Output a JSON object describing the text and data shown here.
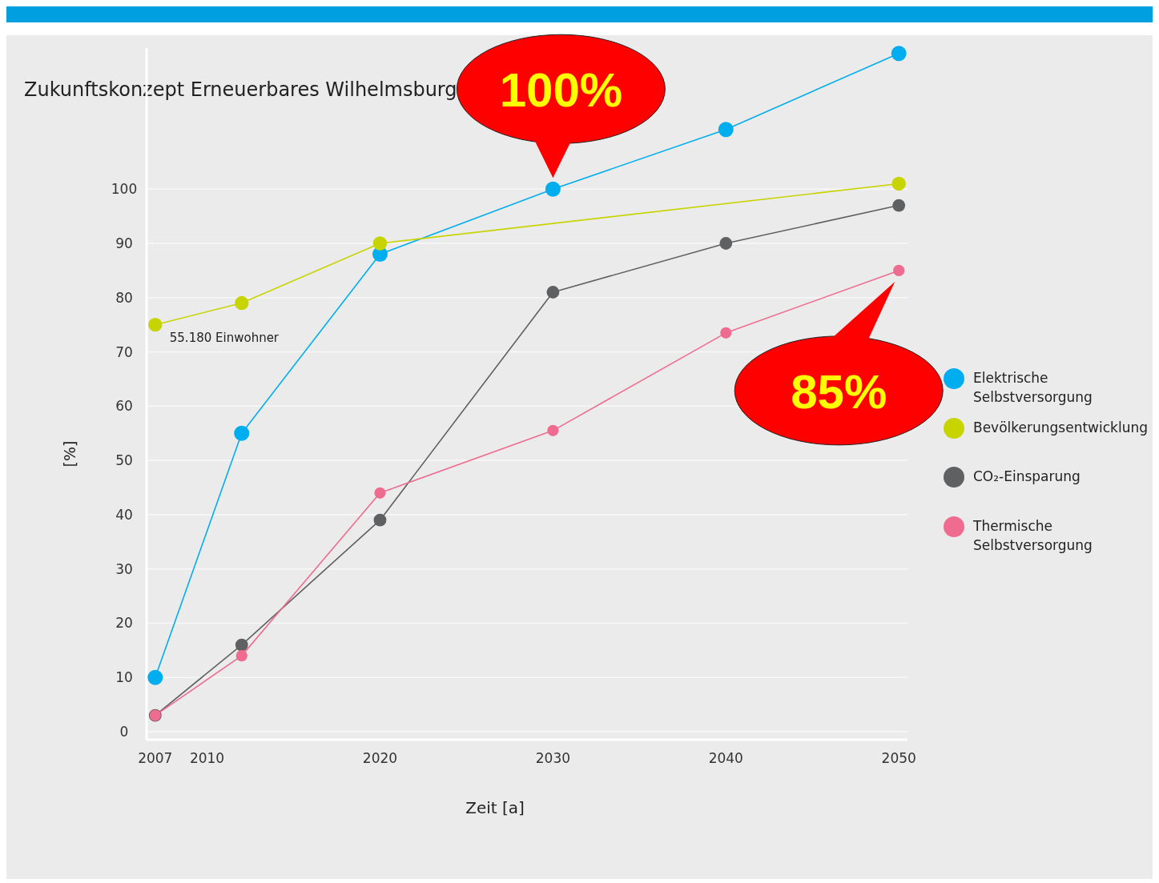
{
  "chart_data": {
    "type": "line",
    "title": "Zukunftskonzept Erneuerbares Wilhelmsburg",
    "xlabel": "Zeit [a]",
    "ylabel": "[%]",
    "x": [
      2007,
      2012,
      2020,
      2030,
      2040,
      2050
    ],
    "series": [
      {
        "name": "Elektrische Selbstversorgung",
        "color": "#00aeef",
        "values": [
          10,
          55,
          88,
          100,
          111,
          125
        ]
      },
      {
        "name": "Bevölkerungsentwicklung",
        "color": "#c8d400",
        "values": [
          75,
          79,
          90,
          null,
          null,
          101
        ]
      },
      {
        "name": "CO₂-Einsparung",
        "color": "#5f6062",
        "values": [
          3,
          16,
          39,
          81,
          90,
          97
        ]
      },
      {
        "name": "Thermische Selbstversorgung",
        "color": "#ef6b8f",
        "values": [
          3,
          14,
          44,
          55.5,
          73.5,
          85
        ]
      }
    ],
    "xlim": [
      2006.5,
      2050.5
    ],
    "xticks": [
      2007,
      2010,
      2020,
      2030,
      2040,
      2050
    ],
    "ylim": [
      0,
      126
    ],
    "yticks": [
      0,
      10,
      20,
      30,
      40,
      50,
      60,
      70,
      80,
      90,
      100
    ],
    "grid": "y",
    "legend": "right",
    "marker": "circle",
    "line_style": "solid",
    "annotations": [
      {
        "text": "100%",
        "x": 2030,
        "y": 100
      },
      {
        "text": "85%",
        "x": 2050,
        "y": 85
      },
      {
        "text": "55.180 Einwohner",
        "x": 2007,
        "y": 75
      }
    ]
  }
}
